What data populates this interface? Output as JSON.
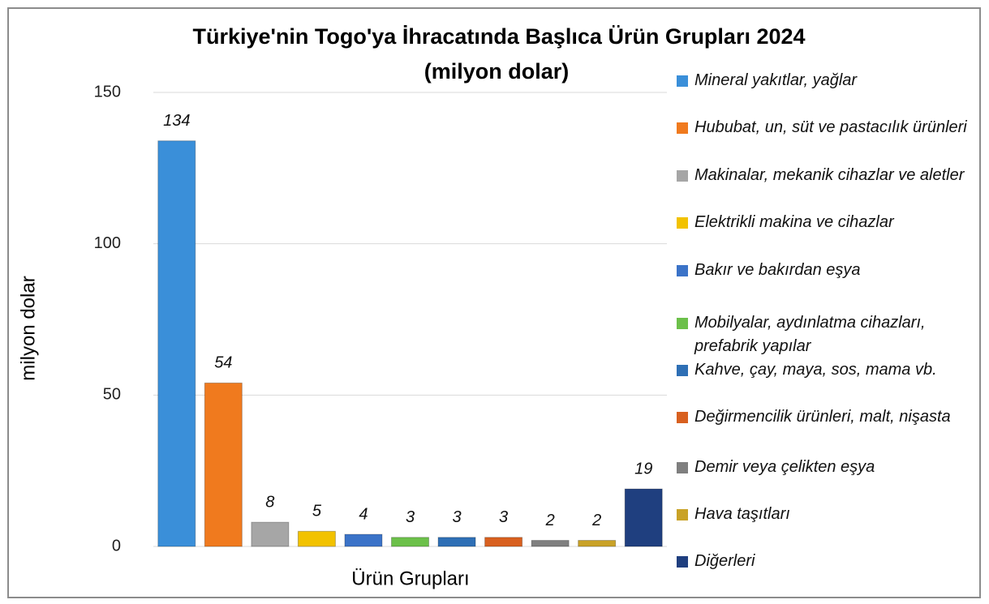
{
  "chart_data": {
    "type": "bar",
    "title": "Türkiye'nin Togo'ya İhracatında Başlıca Ürün Grupları 2024",
    "subtitle": "(milyon dolar)",
    "x_label": "Ürün Grupları",
    "y_label": "milyon dolar",
    "categories": [
      "Mineral yakıtlar, yağlar",
      "Hububat, un, süt ve pastacılık ürünleri",
      "Makinalar, mekanik cihazlar ve aletler",
      "Elektrikli makina ve cihazlar",
      "Bakır ve bakırdan eşya",
      "Mobilyalar, aydınlatma cihazları, prefabrik yapılar",
      "Kahve, çay, maya, sos, mama vb.",
      "Değirmencilik ürünleri, malt, nişasta",
      "Demir veya çelikten eşya",
      "Hava taşıtları",
      "Diğerleri"
    ],
    "values": [
      134,
      54,
      8,
      5,
      4,
      3,
      3,
      3,
      2,
      2,
      19
    ],
    "colors": [
      "#3a8fd9",
      "#f07a1e",
      "#a6a6a6",
      "#f2c200",
      "#3b73c8",
      "#6cc04a",
      "#2e6fb5",
      "#d8601f",
      "#7f7f7f",
      "#c9a227",
      "#1f3f7f"
    ],
    "ylim": [
      0,
      150
    ],
    "yticks": [
      0,
      50,
      100,
      150
    ],
    "grid": true
  }
}
